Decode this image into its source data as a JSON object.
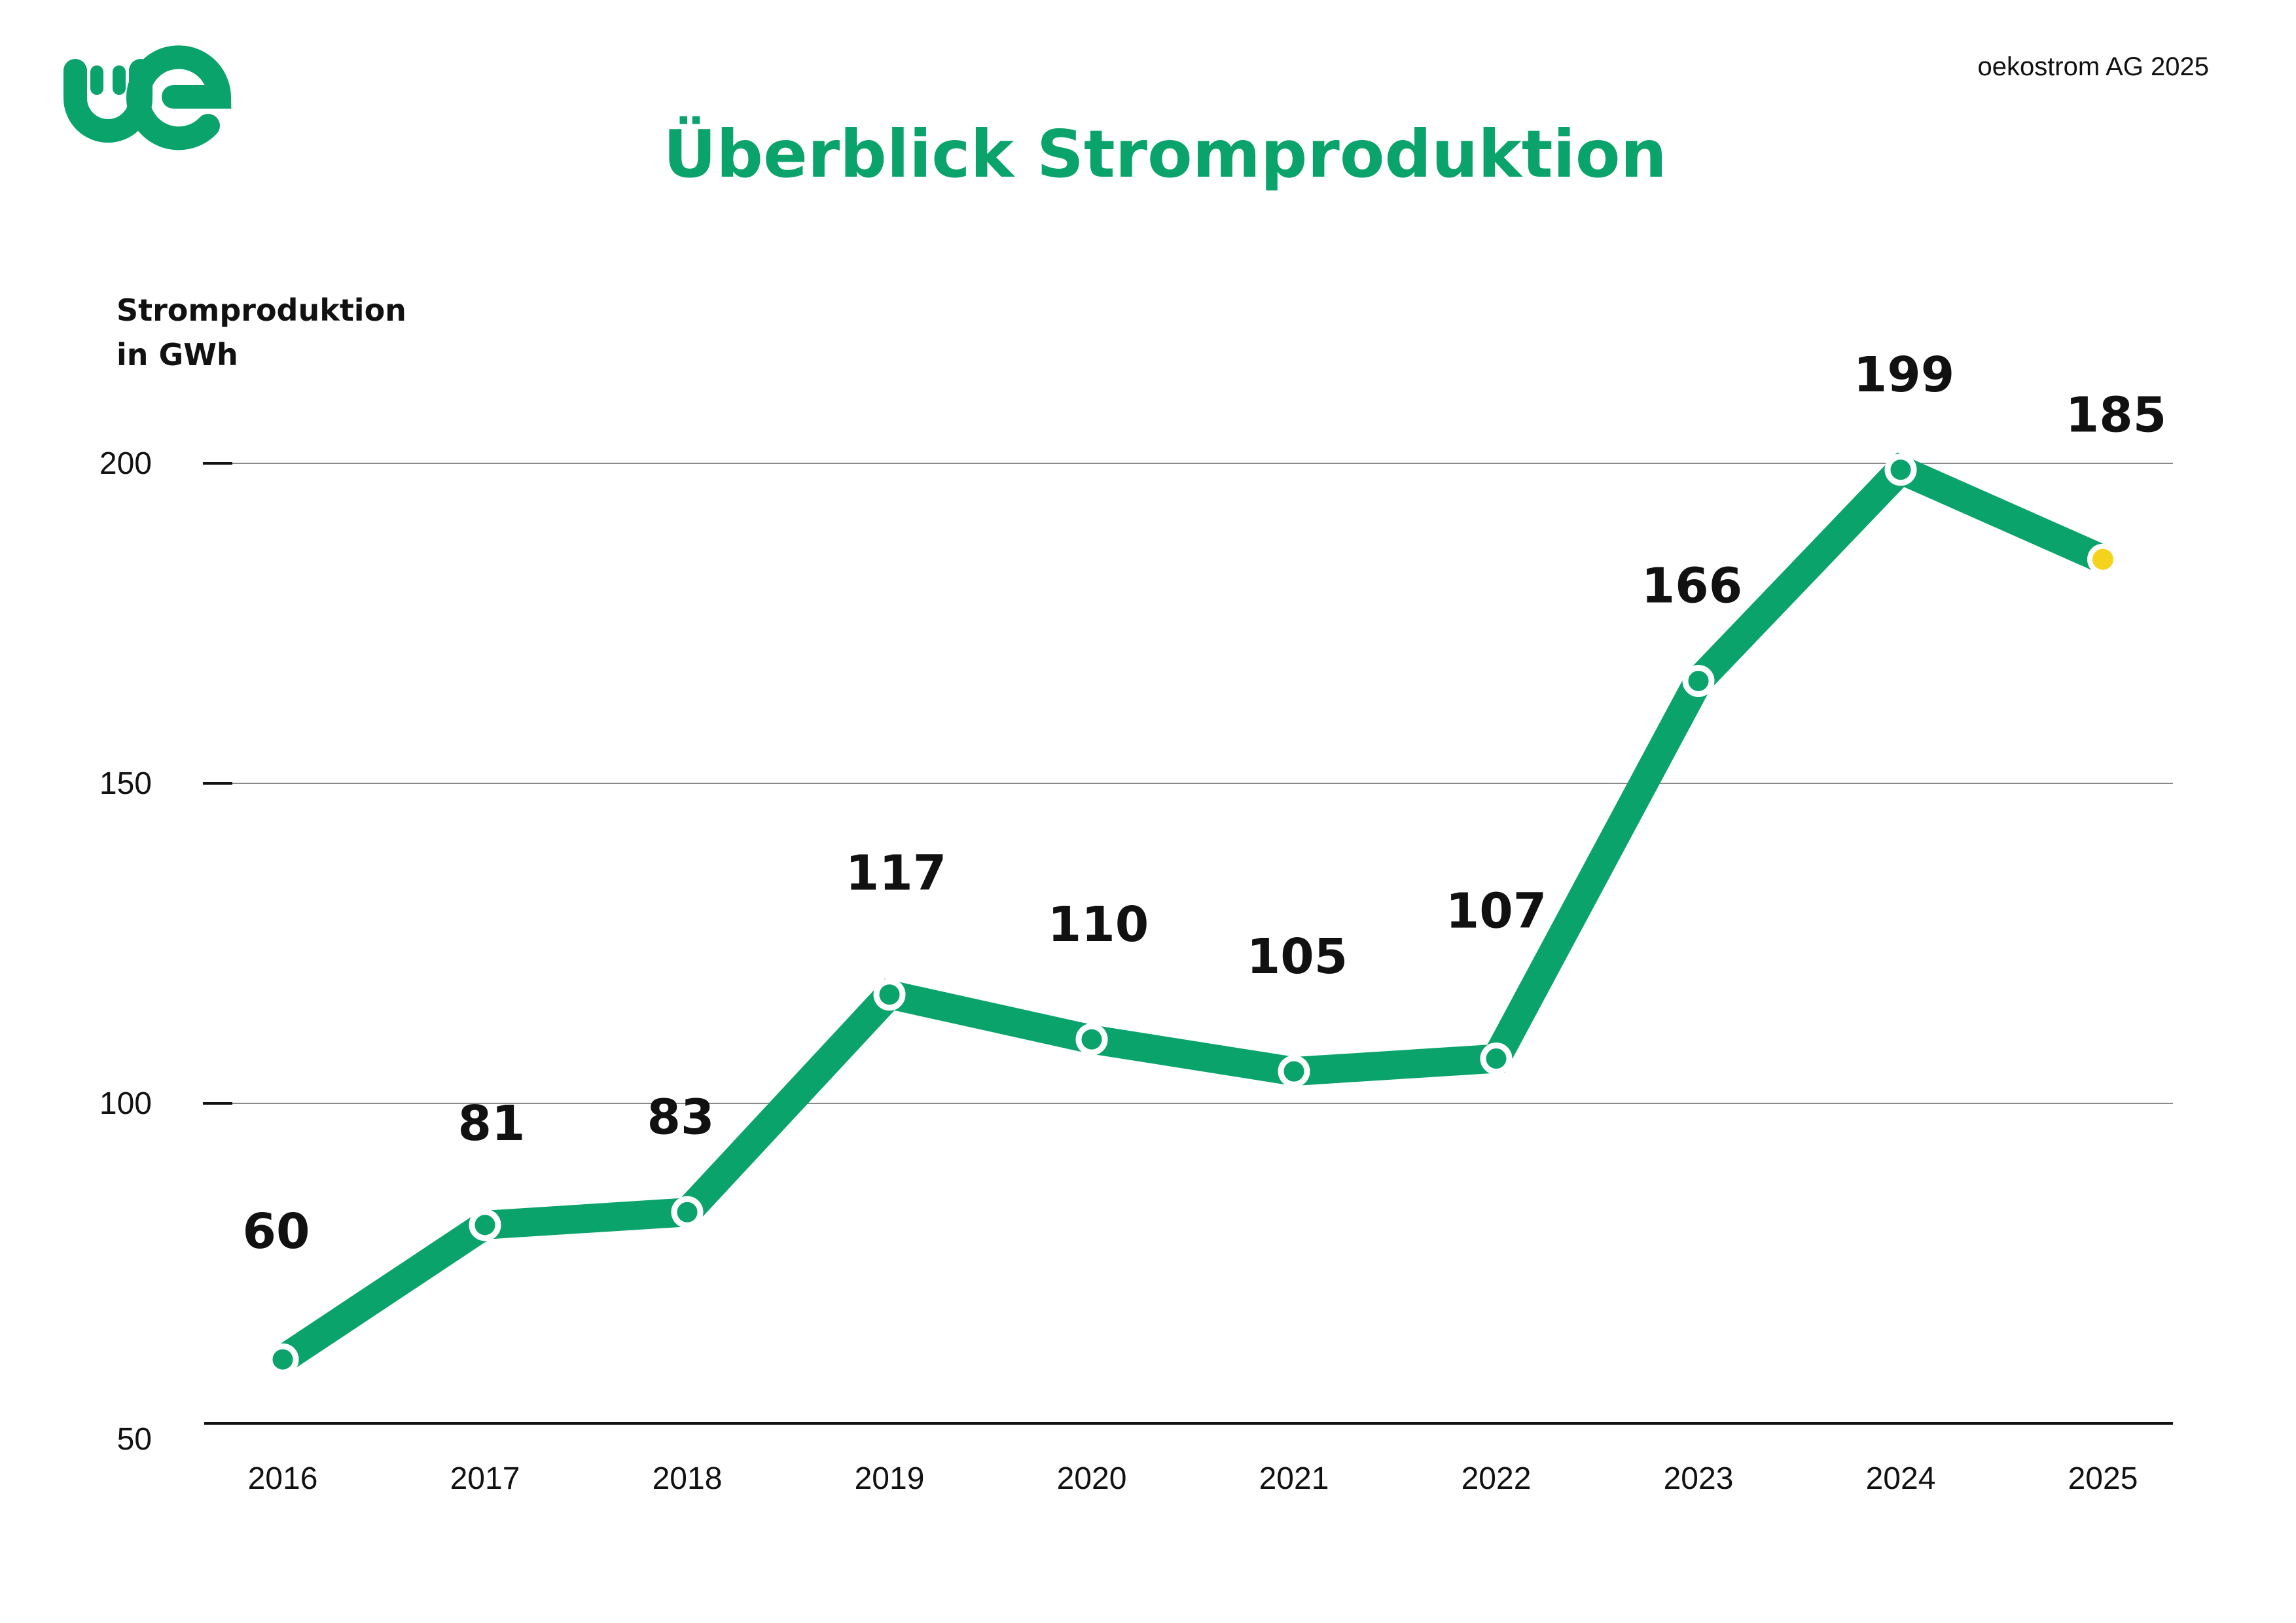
{
  "header": {
    "title": "Überblick Stromproduktion",
    "credit": "oekostrom AG 2025",
    "logo_text": "oe"
  },
  "colors": {
    "brand_green": "#0aa36c",
    "highlight_yellow": "#f5d21c",
    "grid": "#8a8a8a",
    "axis": "#111111",
    "text": "#111111"
  },
  "chart_data": {
    "type": "line",
    "ylabel_lines": [
      "Stromproduktion",
      "in GWh"
    ],
    "xlabel": "",
    "categories": [
      "2016",
      "2017",
      "2018",
      "2019",
      "2020",
      "2021",
      "2022",
      "2023",
      "2024",
      "2025"
    ],
    "series": [
      {
        "values": [
          60,
          81,
          83,
          117,
          110,
          105,
          107,
          166,
          199,
          185
        ]
      }
    ],
    "data_labels": [
      "60",
      "81",
      "83",
      "117",
      "110",
      "105",
      "107",
      "166",
      "199",
      "185"
    ],
    "ylim": [
      50,
      200
    ],
    "yticks": [
      50,
      100,
      150,
      200
    ],
    "ytick_labels": [
      "50",
      "100",
      "150",
      "200"
    ],
    "grid": true,
    "highlight_last_point": true
  }
}
